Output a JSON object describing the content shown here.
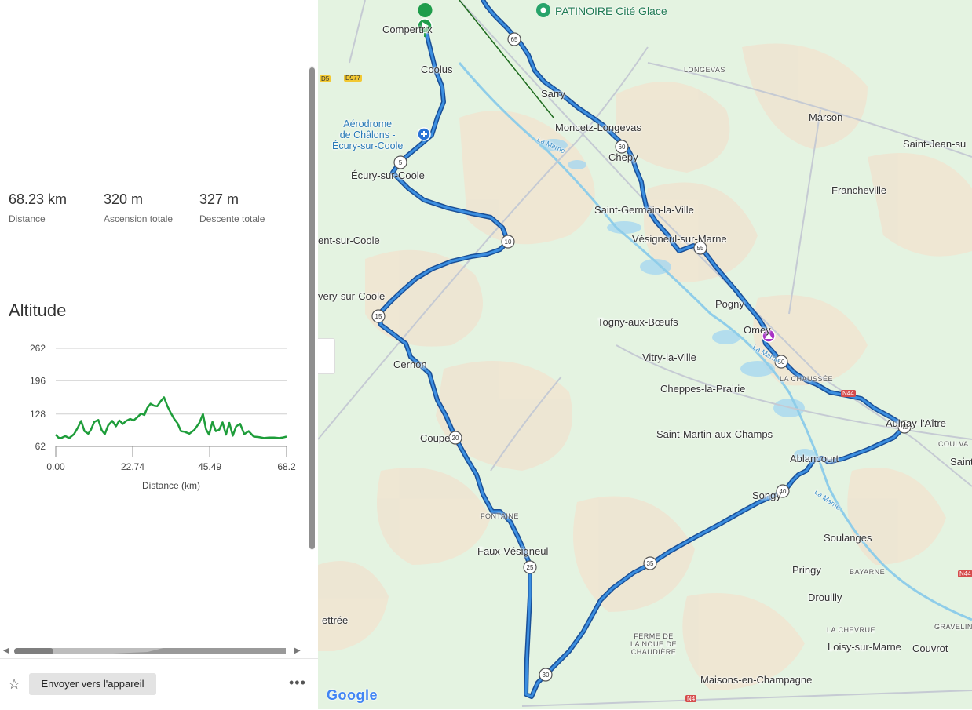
{
  "stats": [
    {
      "value": "68.23 km",
      "label": "Distance"
    },
    {
      "value": "320 m",
      "label": "Ascension totale"
    },
    {
      "value": "327 m",
      "label": "Descente totale"
    }
  ],
  "altitude": {
    "title": "Altitude"
  },
  "chart_data": {
    "type": "line",
    "title": "",
    "xlabel": "Distance (km)",
    "ylabel": "",
    "ylim": [
      62,
      262
    ],
    "xlim": [
      0,
      68.2
    ],
    "y_ticks": [
      "262",
      "196",
      "128",
      "62"
    ],
    "x_ticks": [
      "0.00",
      "22.74",
      "45.49",
      "68.2"
    ],
    "grid": true,
    "series": [
      {
        "color": "#1e9d3a",
        "x": [
          0,
          0.8,
          1.6,
          2.8,
          4,
          5.4,
          6.5,
          7.5,
          8.5,
          9.6,
          10.4,
          11.4,
          12.6,
          13.6,
          14.5,
          15.5,
          16.7,
          17.8,
          18.8,
          19.8,
          20.8,
          22,
          23,
          24.2,
          25.2,
          26.2,
          27,
          28,
          29,
          30,
          31,
          32,
          33,
          34,
          35,
          36,
          37,
          38,
          39.5,
          41,
          42.5,
          43.5,
          44.4,
          45.3,
          46.3,
          47.3,
          48.3,
          49.3,
          50.3,
          51.3,
          52.3,
          53.3,
          54.5,
          55.7,
          57,
          58.5,
          60,
          61.5,
          63,
          64.5,
          66,
          67,
          68.2
        ],
        "y": [
          86,
          80,
          79,
          83,
          79,
          87,
          100,
          114,
          93,
          88,
          96,
          112,
          116,
          95,
          87,
          105,
          114,
          103,
          115,
          108,
          114,
          118,
          115,
          122,
          129,
          126,
          140,
          149,
          145,
          144,
          154,
          162,
          144,
          130,
          118,
          109,
          93,
          92,
          88,
          96,
          111,
          128,
          97,
          86,
          112,
          93,
          96,
          111,
          86,
          110,
          84,
          103,
          108,
          87,
          93,
          82,
          81,
          79,
          80,
          80,
          79,
          80,
          82
        ]
      }
    ]
  },
  "map": {
    "route_color": "#1a5aa8",
    "places": [
      {
        "name": "Compertrix"
      },
      {
        "name": "Coolus"
      },
      {
        "name": "Aérodrome\nde Châlons -\nÉcury-sur-Coole"
      },
      {
        "name": "Écury-sur-Coole"
      },
      {
        "name": "ent-sur-Coole"
      },
      {
        "name": "very-sur-Coole"
      },
      {
        "name": "Cernon"
      },
      {
        "name": "Coupe"
      },
      {
        "name": "FONTAINE"
      },
      {
        "name": "Faux-Vésigneul"
      },
      {
        "name": "ettrée"
      },
      {
        "name": "PATINOIRE Cité Glace"
      },
      {
        "name": "Sarry"
      },
      {
        "name": "Moncetz-Longevas"
      },
      {
        "name": "LONGEVAS"
      },
      {
        "name": "Chepy"
      },
      {
        "name": "Saint-Germain-la-Ville"
      },
      {
        "name": "Vésigneul-sur-Marne"
      },
      {
        "name": "Pogny"
      },
      {
        "name": "Omey"
      },
      {
        "name": "Togny-aux-Bœufs"
      },
      {
        "name": "Vitry-la-Ville"
      },
      {
        "name": "Cheppes-la-Prairie"
      },
      {
        "name": "Saint-Martin-aux-Champs"
      },
      {
        "name": "LA CHAUSSÉE"
      },
      {
        "name": "Aulnay-l'Aître"
      },
      {
        "name": "COULVA"
      },
      {
        "name": "Saint"
      },
      {
        "name": "Ablancourt"
      },
      {
        "name": "Songy"
      },
      {
        "name": "Soulanges"
      },
      {
        "name": "Pringy"
      },
      {
        "name": "BAYARNE"
      },
      {
        "name": "Drouilly"
      },
      {
        "name": "LA CHEVRUE"
      },
      {
        "name": "Loisy-sur-Marne"
      },
      {
        "name": "Couvrot"
      },
      {
        "name": "GRAVELIN"
      },
      {
        "name": "FERME DE\nLA NOUE DE\nCHAUDIÈRE"
      },
      {
        "name": "Maisons-en-Champagne"
      },
      {
        "name": "Marson"
      },
      {
        "name": "Saint-Jean-su"
      },
      {
        "name": "Francheville"
      },
      {
        "name": "La Marne"
      },
      {
        "name": "La Marne"
      },
      {
        "name": "La Marne"
      }
    ],
    "km_markers": [
      "5",
      "10",
      "15",
      "20",
      "25",
      "30",
      "35",
      "40",
      "45",
      "50",
      "55",
      "60",
      "65"
    ],
    "roads": [
      "D5",
      "D977",
      "N44",
      "N4",
      "N44"
    ],
    "logo": "Google"
  },
  "actions": {
    "send": "Envoyer vers l'appareil"
  },
  "icons": [
    "star-icon",
    "more-icon",
    "start-flag-icon",
    "airport-icon",
    "summit-icon",
    "pin-icon"
  ]
}
